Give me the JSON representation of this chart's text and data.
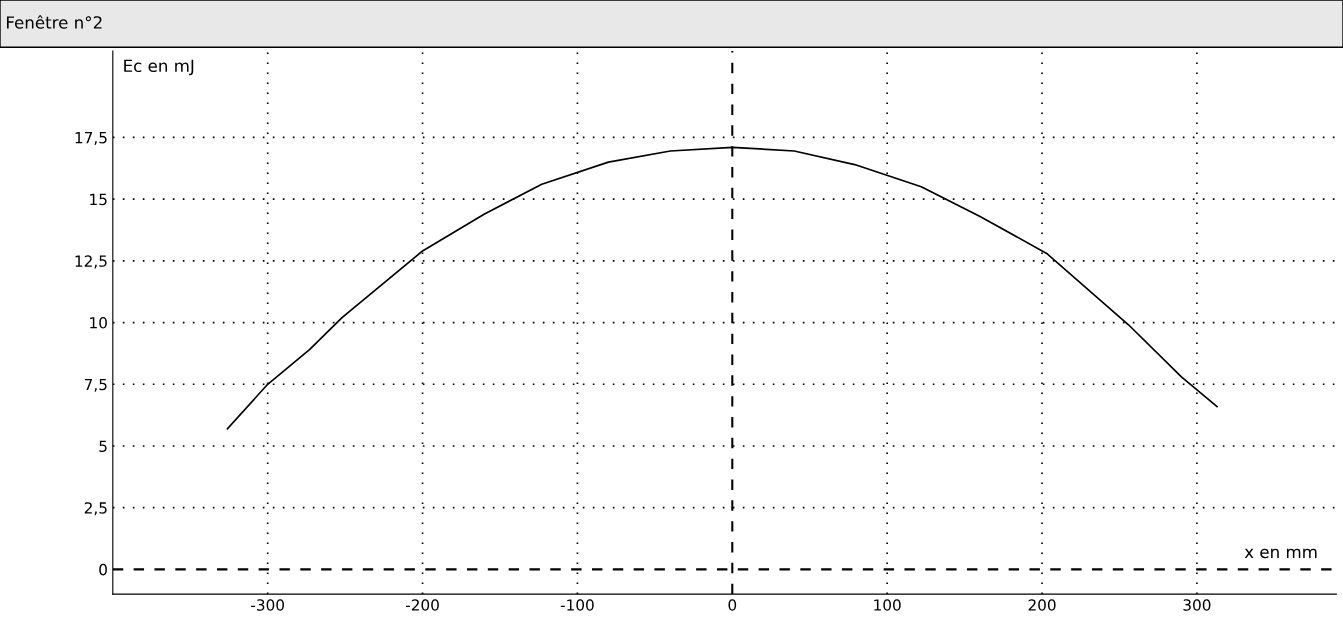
{
  "chart_data": {
    "type": "line",
    "title": "Fenêtre n°2",
    "xlabel": "x en mm",
    "ylabel": "Ec en mJ",
    "x": [
      -326,
      -300,
      -273,
      -252,
      -200,
      -160,
      -123,
      -80,
      -40,
      0,
      40,
      79,
      122,
      160,
      203,
      256,
      290,
      313
    ],
    "series": [
      {
        "color": "#000000",
        "values": [
          5.7,
          7.5,
          8.9,
          10.2,
          12.9,
          14.4,
          15.6,
          16.5,
          16.95,
          17.1,
          16.95,
          16.4,
          15.5,
          14.3,
          12.8,
          9.9,
          7.8,
          6.6
        ]
      }
    ],
    "xlim": [
      -400,
      390
    ],
    "ylim": [
      -1,
      21
    ],
    "xticks": [
      -300,
      -200,
      -100,
      0,
      100,
      200,
      300
    ],
    "yticks": [
      0,
      {
        "value": 2.5,
        "label": "2,5"
      },
      5,
      {
        "value": 7.5,
        "label": "7,5"
      },
      10,
      {
        "value": 12.5,
        "label": "12,5"
      },
      15,
      {
        "value": 17.5,
        "label": "17,5"
      }
    ],
    "grid": true,
    "marker": "none",
    "line_style": "solid"
  }
}
